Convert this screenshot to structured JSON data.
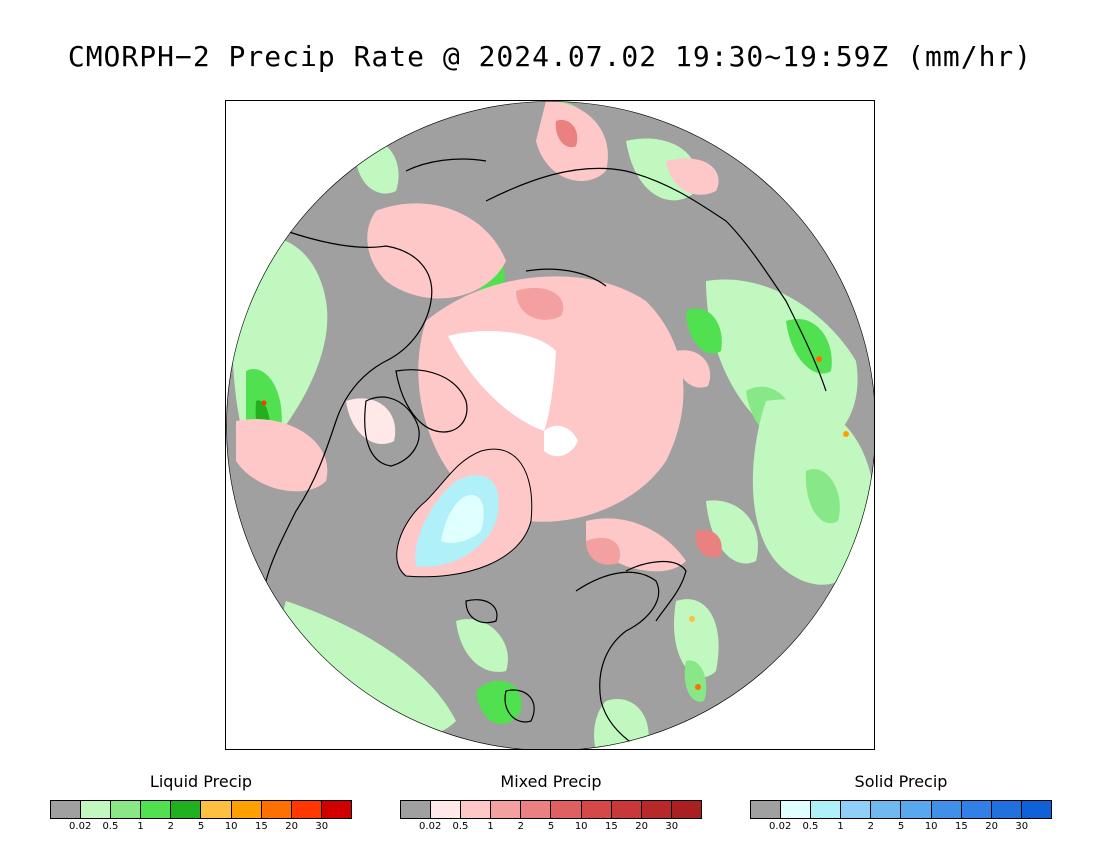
{
  "title": "CMORPH−2 Precip Rate @ 2024.07.02 19:30~19:59Z (mm/hr)",
  "map": {
    "projection": "north-polar-stereographic",
    "colors": {
      "no_precip": "#a0a0a0",
      "ocean_background": "#a0a0a0",
      "coastline": "#000000",
      "no_data": "#ffffff"
    },
    "regions_icons": [
      "north-america-coastline-icon",
      "greenland-icon",
      "eurasia-coastline-icon",
      "arctic-ocean-icon"
    ]
  },
  "legends": [
    {
      "id": "liquid",
      "title": "Liquid Precip",
      "ticks": [
        "0.02",
        "0.5",
        "1",
        "2",
        "5",
        "10",
        "15",
        "20",
        "30"
      ],
      "colors": [
        "#a0a0a0",
        "#c0f8c0",
        "#88e888",
        "#50e050",
        "#20b020",
        "#ffc040",
        "#ffa000",
        "#ff7000",
        "#ff3800",
        "#d00000"
      ]
    },
    {
      "id": "mixed",
      "title": "Mixed Precip",
      "ticks": [
        "0.02",
        "0.5",
        "1",
        "2",
        "5",
        "10",
        "15",
        "20",
        "30"
      ],
      "colors": [
        "#a0a0a0",
        "#ffe8e8",
        "#ffc8c8",
        "#f4a0a0",
        "#ea8080",
        "#e06060",
        "#d44848",
        "#c83838",
        "#b82828",
        "#a82020"
      ]
    },
    {
      "id": "solid",
      "title": "Solid Precip",
      "ticks": [
        "0.02",
        "0.5",
        "1",
        "2",
        "5",
        "10",
        "15",
        "20",
        "30"
      ],
      "colors": [
        "#a0a0a0",
        "#e0ffff",
        "#b0f0f8",
        "#90d0f8",
        "#70b8f0",
        "#58a8f0",
        "#4090e8",
        "#3080e8",
        "#2070e0",
        "#1060d8"
      ]
    }
  ]
}
